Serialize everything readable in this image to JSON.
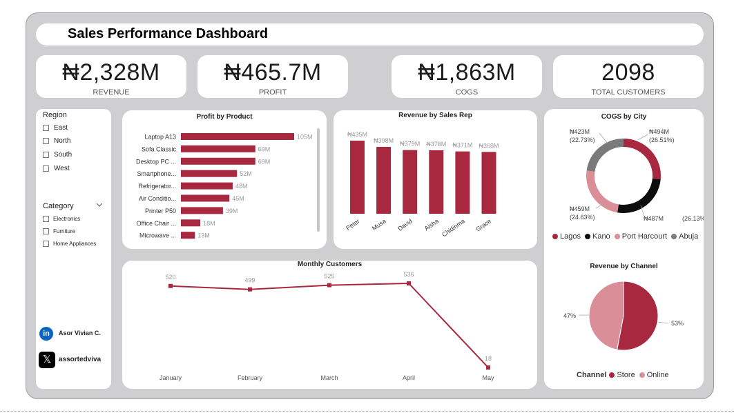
{
  "title": "Sales Performance Dashboard",
  "kpis": {
    "revenue": {
      "value": "₦2,328M",
      "label": "REVENUE"
    },
    "profit": {
      "value": "₦465.7M",
      "label": "PROFIT"
    },
    "cogs": {
      "value": "₦1,863M",
      "label": "COGS"
    },
    "customers": {
      "value": "2098",
      "label": "TOTAL CUSTOMERS"
    }
  },
  "filters": {
    "region_title": "Region",
    "regions": [
      "East",
      "North",
      "South",
      "West"
    ],
    "category_title": "Category",
    "categories": [
      "Electronics",
      "Furniture",
      "Home Appliances"
    ]
  },
  "social": {
    "linkedin": "Asor Vivian C.",
    "x": "assortedviva"
  },
  "colors": {
    "accent": "#a8283f",
    "light": "#d98e98",
    "dark": "#0d0d0d",
    "gray": "#7a7a7a",
    "panel": "#cfcfd2"
  },
  "chart_data": [
    {
      "id": "profit_by_product",
      "type": "bar",
      "orientation": "horizontal",
      "title": "Profit by Product",
      "categories": [
        "Laptop A13",
        "Sofa Classic",
        "Desktop PC ...",
        "Smartphone...",
        "Refrigerator...",
        "Air Conditio...",
        "Printer P50",
        "Office Chair ...",
        "Microwave ..."
      ],
      "values": [
        105,
        69,
        69,
        52,
        48,
        45,
        39,
        18,
        13
      ],
      "data_labels": [
        "105M",
        "69M",
        "69M",
        "52M",
        "48M",
        "45M",
        "39M",
        "18M",
        "13M"
      ]
    },
    {
      "id": "revenue_by_sales_rep",
      "type": "bar",
      "title": "Revenue by Sales Rep",
      "categories": [
        "Peter",
        "Musa",
        "David",
        "Aisha",
        "Chidinma",
        "Grace"
      ],
      "values": [
        435,
        398,
        379,
        378,
        371,
        368
      ],
      "data_labels": [
        "₦435M",
        "₦398M",
        "₦379M",
        "₦378M",
        "₦371M",
        "₦368M"
      ]
    },
    {
      "id": "cogs_by_city",
      "type": "pie",
      "style": "donut",
      "title": "COGS by City",
      "legend_position": "bottom",
      "labels": [
        "Lagos",
        "Kano",
        "Port Harcourt",
        "Abuja"
      ],
      "values": [
        494,
        487,
        459,
        423
      ],
      "percentages": [
        26.51,
        26.13,
        24.63,
        22.73
      ],
      "value_labels": [
        "₦494M",
        "₦487M",
        "₦459M",
        "₦423M"
      ],
      "pct_labels": [
        "(26.51%)",
        "(26.13%)",
        "(24.63%)",
        "(22.73%)"
      ]
    },
    {
      "id": "monthly_customers",
      "type": "line",
      "title": "Monthly Customers",
      "x": [
        "January",
        "February",
        "March",
        "April",
        "May"
      ],
      "values": [
        520,
        499,
        525,
        536,
        18
      ],
      "data_labels": [
        "520",
        "499",
        "525",
        "536",
        "18"
      ]
    },
    {
      "id": "revenue_by_channel",
      "type": "pie",
      "title": "Revenue by Channel",
      "legend_title": "Channel",
      "legend_position": "bottom",
      "labels": [
        "Store",
        "Online"
      ],
      "values": [
        53,
        47
      ],
      "pct_labels": [
        "53%",
        "47%"
      ]
    }
  ]
}
